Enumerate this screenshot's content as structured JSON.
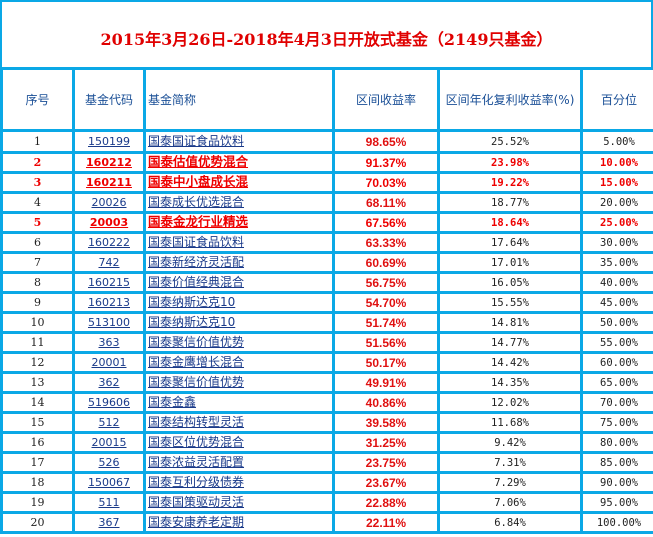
{
  "title": "2015年3月26日-2018年4月3日开放式基金（2149只基金）",
  "colors": {
    "border": "#0aa8e6",
    "header_text": "#1a4f96",
    "link": "#1a3a8a",
    "highlight_red": "#ee0000"
  },
  "table": {
    "headers": [
      "序号",
      "基金代码",
      "基金简称",
      "区间收益率",
      "区间年化复利收益率(%)",
      "百分位"
    ],
    "rows": [
      {
        "idx": "1",
        "code": "150199",
        "name": "国泰国证食品饮料",
        "ret": "98.65%",
        "ann": "25.52%",
        "pct": "5.00%",
        "highlight": false
      },
      {
        "idx": "2",
        "code": "160212",
        "name": "国泰估值优势混合",
        "ret": "91.37%",
        "ann": "23.98%",
        "pct": "10.00%",
        "highlight": true
      },
      {
        "idx": "3",
        "code": "160211",
        "name": "国泰中小盘成长混",
        "ret": "70.03%",
        "ann": "19.22%",
        "pct": "15.00%",
        "highlight": true
      },
      {
        "idx": "4",
        "code": "20026",
        "name": "国泰成长优选混合",
        "ret": "68.11%",
        "ann": "18.77%",
        "pct": "20.00%",
        "highlight": false
      },
      {
        "idx": "5",
        "code": "20003",
        "name": "国泰金龙行业精选",
        "ret": "67.56%",
        "ann": "18.64%",
        "pct": "25.00%",
        "highlight": true
      },
      {
        "idx": "6",
        "code": "160222",
        "name": "国泰国证食品饮料",
        "ret": "63.33%",
        "ann": "17.64%",
        "pct": "30.00%",
        "highlight": false
      },
      {
        "idx": "7",
        "code": "742",
        "name": "国泰新经济灵活配",
        "ret": "60.69%",
        "ann": "17.01%",
        "pct": "35.00%",
        "highlight": false
      },
      {
        "idx": "8",
        "code": "160215",
        "name": "国泰价值经典混合",
        "ret": "56.75%",
        "ann": "16.05%",
        "pct": "40.00%",
        "highlight": false
      },
      {
        "idx": "9",
        "code": "160213",
        "name": "国泰纳斯达克10",
        "ret": "54.70%",
        "ann": "15.55%",
        "pct": "45.00%",
        "highlight": false
      },
      {
        "idx": "10",
        "code": "513100",
        "name": "国泰纳斯达克10",
        "ret": "51.74%",
        "ann": "14.81%",
        "pct": "50.00%",
        "highlight": false
      },
      {
        "idx": "11",
        "code": "363",
        "name": "国泰聚信价值优势",
        "ret": "51.56%",
        "ann": "14.77%",
        "pct": "55.00%",
        "highlight": false
      },
      {
        "idx": "12",
        "code": "20001",
        "name": "国泰金鹰增长混合",
        "ret": "50.17%",
        "ann": "14.42%",
        "pct": "60.00%",
        "highlight": false
      },
      {
        "idx": "13",
        "code": "362",
        "name": "国泰聚信价值优势",
        "ret": "49.91%",
        "ann": "14.35%",
        "pct": "65.00%",
        "highlight": false
      },
      {
        "idx": "14",
        "code": "519606",
        "name": "国泰金鑫",
        "ret": "40.86%",
        "ann": "12.02%",
        "pct": "70.00%",
        "highlight": false
      },
      {
        "idx": "15",
        "code": "512",
        "name": "国泰结构转型灵活",
        "ret": "39.58%",
        "ann": "11.68%",
        "pct": "75.00%",
        "highlight": false
      },
      {
        "idx": "16",
        "code": "20015",
        "name": "国泰区位优势混合",
        "ret": "31.25%",
        "ann": "9.42%",
        "pct": "80.00%",
        "highlight": false
      },
      {
        "idx": "17",
        "code": "526",
        "name": "国泰浓益灵活配置",
        "ret": "23.75%",
        "ann": "7.31%",
        "pct": "85.00%",
        "highlight": false
      },
      {
        "idx": "18",
        "code": "150067",
        "name": "国泰互利分级债券",
        "ret": "23.67%",
        "ann": "7.29%",
        "pct": "90.00%",
        "highlight": false
      },
      {
        "idx": "19",
        "code": "511",
        "name": "国泰国策驱动灵活",
        "ret": "22.88%",
        "ann": "7.06%",
        "pct": "95.00%",
        "highlight": false
      },
      {
        "idx": "20",
        "code": "367",
        "name": "国泰安康养老定期",
        "ret": "22.11%",
        "ann": "6.84%",
        "pct": "100.00%",
        "highlight": false
      }
    ]
  }
}
